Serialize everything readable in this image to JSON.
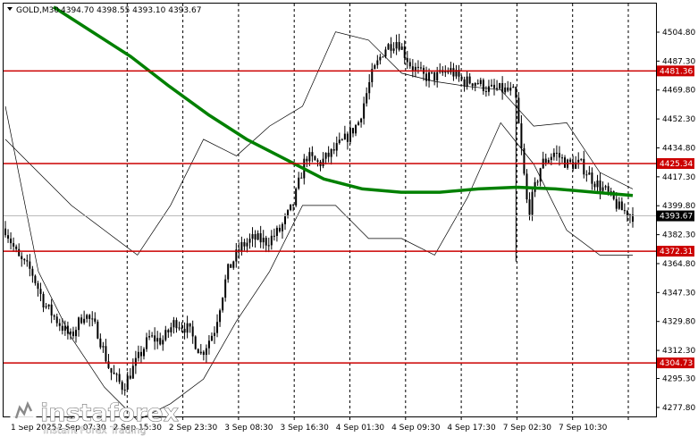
{
  "header": {
    "symbol": "GOLD,M30",
    "ohlc": "4394.70 4398.55 4393.10 4393.67"
  },
  "logo": {
    "brand": "instaforex",
    "tagline": "Instant Forex Trading"
  },
  "colors": {
    "candle": "#000000",
    "ma": "#008000",
    "band": "#000000",
    "level": "#cc0000",
    "grid": "#000000",
    "current_bg": "#000000"
  },
  "chart_data": {
    "type": "candlestick",
    "symbol": "GOLD,M30",
    "ylim": [
      4270.0,
      4520.0
    ],
    "y_ticks": [
      "4504.80",
      "4487.30",
      "4469.80",
      "4452.30",
      "4434.80",
      "4417.30",
      "4399.80",
      "4382.30",
      "4364.80",
      "4347.30",
      "4329.80",
      "4312.30",
      "4295.30",
      "4277.80"
    ],
    "x_ticks": [
      "1 Sep 2025",
      "2 Sep 07:30",
      "2 Sep 15:30",
      "2 Sep 23:30",
      "3 Sep 08:30",
      "3 Sep 16:30",
      "4 Sep 01:30",
      "4 Sep 09:30",
      "4 Sep 17:30",
      "7 Sep 02:30",
      "7 Sep 10:30"
    ],
    "levels": [
      {
        "label": "4481.36",
        "value": 4481.36
      },
      {
        "label": "4425.34",
        "value": 4425.34
      },
      {
        "label": "4372.31",
        "value": 4372.31
      },
      {
        "label": "4304.73",
        "value": 4304.73
      }
    ],
    "current_price": {
      "label": "4393.67",
      "value": 4393.67
    },
    "close_path": [
      4386,
      4368,
      4360,
      4340,
      4330,
      4320,
      4335,
      4325,
      4300,
      4290,
      4305,
      4320,
      4318,
      4330,
      4325,
      4310,
      4325,
      4360,
      4375,
      4380,
      4378,
      4385,
      4400,
      4430,
      4425,
      4432,
      4440,
      4450,
      4478,
      4495,
      4500,
      4485,
      4478,
      4478,
      4482,
      4475,
      4475,
      4470,
      4470,
      4468,
      4395,
      4425,
      4432,
      4425,
      4425,
      4415,
      4408,
      4398,
      4394
    ],
    "ma": [
      4520,
      4505,
      4490,
      4472,
      4455,
      4440,
      4428,
      4416,
      4410,
      4408,
      4408,
      4410,
      4411,
      4410,
      4408,
      4406
    ],
    "band_upper": [
      4440,
      4420,
      4400,
      4385,
      4370,
      4400,
      4440,
      4430,
      4448,
      4460,
      4505,
      4500,
      4480,
      4475,
      4472,
      4470,
      4448,
      4450,
      4420,
      4410
    ],
    "band_lower": [
      4460,
      4360,
      4320,
      4290,
      4270,
      4280,
      4295,
      4330,
      4360,
      4400,
      4400,
      4380,
      4380,
      4370,
      4405,
      4450,
      4425,
      4385,
      4370,
      4370
    ]
  }
}
